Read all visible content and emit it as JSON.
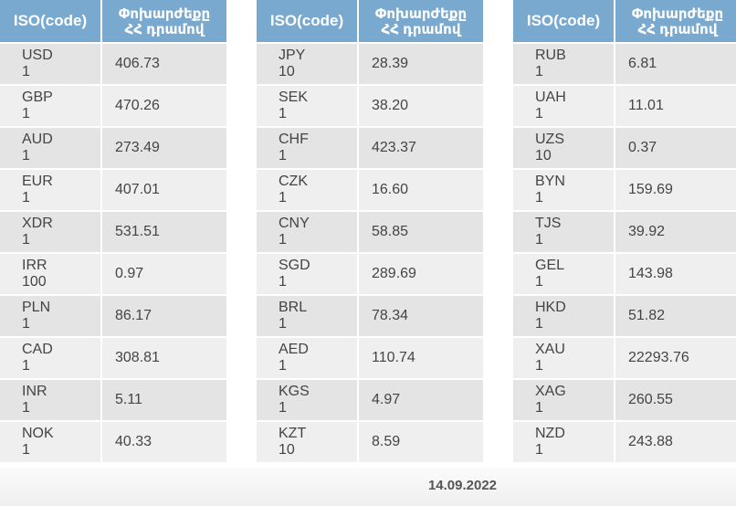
{
  "headers": {
    "iso": "ISO(code)",
    "rate_line1": "Փոխարժեքը",
    "rate_line2": "ՀՀ դրամով"
  },
  "tables": [
    [
      {
        "code": "USD",
        "amount": "1",
        "rate": "406.73"
      },
      {
        "code": "GBP",
        "amount": "1",
        "rate": "470.26"
      },
      {
        "code": "AUD",
        "amount": "1",
        "rate": "273.49"
      },
      {
        "code": "EUR",
        "amount": "1",
        "rate": "407.01"
      },
      {
        "code": "XDR",
        "amount": "1",
        "rate": "531.51"
      },
      {
        "code": "IRR",
        "amount": "100",
        "rate": "0.97"
      },
      {
        "code": "PLN",
        "amount": "1",
        "rate": "86.17"
      },
      {
        "code": "CAD",
        "amount": "1",
        "rate": "308.81"
      },
      {
        "code": "INR",
        "amount": "1",
        "rate": "5.11"
      },
      {
        "code": "NOK",
        "amount": "1",
        "rate": "40.33"
      }
    ],
    [
      {
        "code": "JPY",
        "amount": "10",
        "rate": "28.39"
      },
      {
        "code": "SEK",
        "amount": "1",
        "rate": "38.20"
      },
      {
        "code": "CHF",
        "amount": "1",
        "rate": "423.37"
      },
      {
        "code": "CZK",
        "amount": "1",
        "rate": "16.60"
      },
      {
        "code": "CNY",
        "amount": "1",
        "rate": "58.85"
      },
      {
        "code": "SGD",
        "amount": "1",
        "rate": "289.69"
      },
      {
        "code": "BRL",
        "amount": "1",
        "rate": "78.34"
      },
      {
        "code": "AED",
        "amount": "1",
        "rate": "110.74"
      },
      {
        "code": "KGS",
        "amount": "1",
        "rate": "4.97"
      },
      {
        "code": "KZT",
        "amount": "10",
        "rate": "8.59"
      }
    ],
    [
      {
        "code": "RUB",
        "amount": "1",
        "rate": "6.81"
      },
      {
        "code": "UAH",
        "amount": "1",
        "rate": "11.01"
      },
      {
        "code": "UZS",
        "amount": "10",
        "rate": "0.37"
      },
      {
        "code": "BYN",
        "amount": "1",
        "rate": "159.69"
      },
      {
        "code": "TJS",
        "amount": "1",
        "rate": "39.92"
      },
      {
        "code": "GEL",
        "amount": "1",
        "rate": "143.98"
      },
      {
        "code": "HKD",
        "amount": "1",
        "rate": "51.82"
      },
      {
        "code": "XAU",
        "amount": "1",
        "rate": "22293.76"
      },
      {
        "code": "XAG",
        "amount": "1",
        "rate": "260.55"
      },
      {
        "code": "NZD",
        "amount": "1",
        "rate": "243.88"
      }
    ]
  ],
  "footer": {
    "date": "14.09.2022"
  }
}
